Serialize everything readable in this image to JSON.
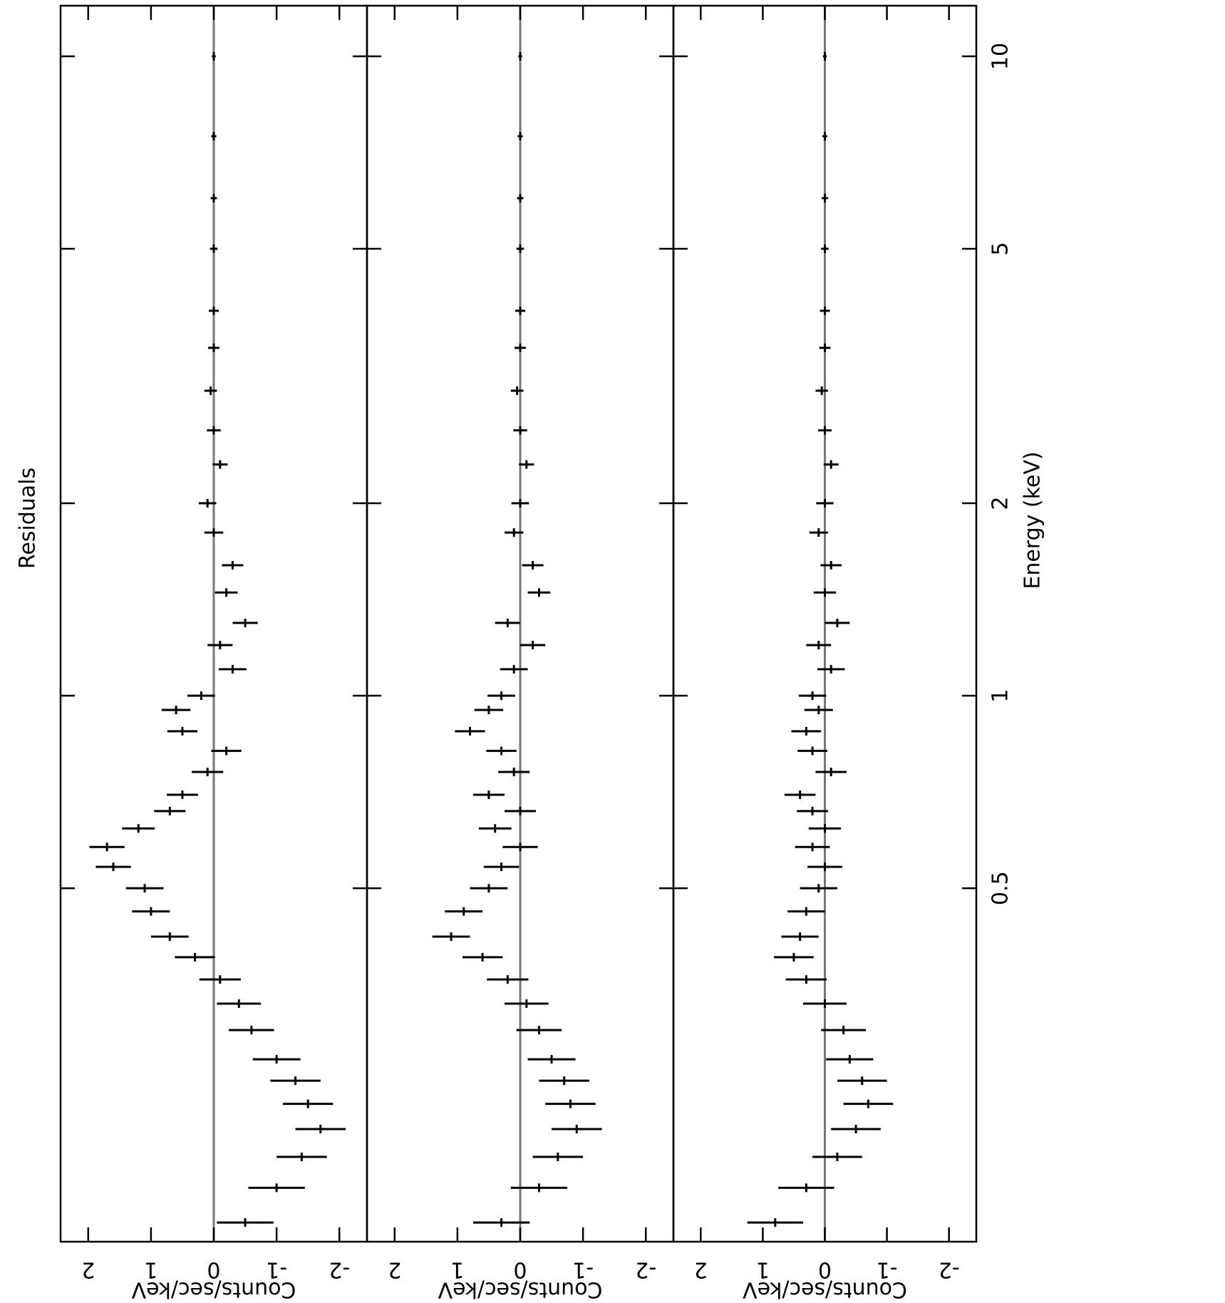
{
  "chart_data": [
    {
      "type": "errorbar",
      "title": "Residuals",
      "ylabel": "Counts/sec/keV",
      "xlog": true,
      "xlim": [
        0.14,
        12
      ],
      "xticks": [
        0.5,
        1,
        2,
        5,
        10
      ],
      "ylim": [
        -2.44,
        2.44
      ],
      "yticks": [
        -2,
        -1,
        0,
        1,
        2
      ],
      "series": [
        {
          "color": "#000000",
          "x": [
            0.15,
            0.17,
            0.19,
            0.21,
            0.23,
            0.25,
            0.27,
            0.3,
            0.33,
            0.36,
            0.39,
            0.42,
            0.46,
            0.5,
            0.54,
            0.58,
            0.62,
            0.66,
            0.7,
            0.76,
            0.82,
            0.88,
            0.95,
            1.0,
            1.1,
            1.2,
            1.3,
            1.45,
            1.6,
            1.8,
            2.0,
            2.3,
            2.6,
            3.0,
            3.5,
            4.0,
            5.0,
            6.0,
            7.5,
            10.0
          ],
          "values": [
            -0.5,
            -1.0,
            -1.4,
            -1.7,
            -1.5,
            -1.3,
            -1.0,
            -0.6,
            -0.4,
            -0.1,
            0.3,
            0.7,
            1.0,
            1.1,
            1.6,
            1.7,
            1.2,
            0.7,
            0.5,
            0.1,
            -0.2,
            0.5,
            0.6,
            0.2,
            -0.3,
            -0.1,
            -0.5,
            -0.2,
            -0.3,
            0,
            0.1,
            -0.1,
            0,
            0.05,
            0,
            0,
            0,
            0,
            0,
            0
          ],
          "errors": [
            0.45,
            0.45,
            0.4,
            0.4,
            0.4,
            0.4,
            0.38,
            0.36,
            0.35,
            0.33,
            0.32,
            0.3,
            0.3,
            0.3,
            0.28,
            0.28,
            0.26,
            0.25,
            0.25,
            0.25,
            0.24,
            0.24,
            0.23,
            0.22,
            0.22,
            0.2,
            0.2,
            0.18,
            0.17,
            0.15,
            0.14,
            0.12,
            0.11,
            0.1,
            0.09,
            0.08,
            0.06,
            0.05,
            0.04,
            0.03
          ]
        }
      ]
    },
    {
      "type": "errorbar",
      "ylabel": "Counts/sec/keV",
      "xlog": true,
      "xlim": [
        0.14,
        12
      ],
      "xticks": [
        0.5,
        1,
        2,
        5,
        10
      ],
      "ylim": [
        -2.44,
        2.44
      ],
      "yticks": [
        -2,
        -1,
        0,
        1,
        2
      ],
      "series": [
        {
          "color": "#000000",
          "x": [
            0.15,
            0.17,
            0.19,
            0.21,
            0.23,
            0.25,
            0.27,
            0.3,
            0.33,
            0.36,
            0.39,
            0.42,
            0.46,
            0.5,
            0.54,
            0.58,
            0.62,
            0.66,
            0.7,
            0.76,
            0.82,
            0.88,
            0.95,
            1.0,
            1.1,
            1.2,
            1.3,
            1.45,
            1.6,
            1.8,
            2.0,
            2.3,
            2.6,
            3.0,
            3.5,
            4.0,
            5.0,
            6.0,
            7.5,
            10.0
          ],
          "values": [
            0.3,
            -0.3,
            -0.6,
            -0.9,
            -0.8,
            -0.7,
            -0.5,
            -0.3,
            -0.1,
            0.2,
            0.6,
            1.1,
            0.9,
            0.5,
            0.3,
            0,
            0.4,
            0,
            0.5,
            0.1,
            0.3,
            0.8,
            0.5,
            0.3,
            0.1,
            -0.2,
            0.2,
            -0.3,
            -0.2,
            0.1,
            0,
            -0.1,
            0,
            0.05,
            0,
            0,
            0,
            0,
            0,
            0
          ],
          "errors": [
            0.45,
            0.45,
            0.4,
            0.4,
            0.4,
            0.4,
            0.38,
            0.36,
            0.35,
            0.33,
            0.32,
            0.3,
            0.3,
            0.3,
            0.28,
            0.28,
            0.26,
            0.25,
            0.25,
            0.25,
            0.24,
            0.24,
            0.23,
            0.22,
            0.22,
            0.2,
            0.2,
            0.18,
            0.17,
            0.15,
            0.14,
            0.12,
            0.11,
            0.1,
            0.09,
            0.08,
            0.06,
            0.05,
            0.04,
            0.03
          ]
        }
      ]
    },
    {
      "type": "errorbar",
      "ylabel": "Counts/sec/keV",
      "xlabel": "Energy (keV)",
      "xlog": true,
      "xlim": [
        0.14,
        12
      ],
      "xticks": [
        0.5,
        1,
        2,
        5,
        10
      ],
      "ylim": [
        -2.44,
        2.44
      ],
      "yticks": [
        -2,
        -1,
        0,
        1,
        2
      ],
      "series": [
        {
          "color": "#000000",
          "x": [
            0.15,
            0.17,
            0.19,
            0.21,
            0.23,
            0.25,
            0.27,
            0.3,
            0.33,
            0.36,
            0.39,
            0.42,
            0.46,
            0.5,
            0.54,
            0.58,
            0.62,
            0.66,
            0.7,
            0.76,
            0.82,
            0.88,
            0.95,
            1.0,
            1.1,
            1.2,
            1.3,
            1.45,
            1.6,
            1.8,
            2.0,
            2.3,
            2.6,
            3.0,
            3.5,
            4.0,
            5.0,
            6.0,
            7.5,
            10.0
          ],
          "values": [
            0.8,
            0.3,
            -0.2,
            -0.5,
            -0.7,
            -0.6,
            -0.4,
            -0.3,
            0,
            0.3,
            0.5,
            0.4,
            0.3,
            0.1,
            0,
            0.2,
            0,
            0.2,
            0.4,
            -0.1,
            0.2,
            0.3,
            0.1,
            0.2,
            -0.1,
            0.1,
            -0.2,
            0,
            -0.1,
            0.1,
            0,
            -0.1,
            0,
            0.05,
            0,
            0,
            0,
            0,
            0,
            0
          ],
          "errors": [
            0.45,
            0.45,
            0.4,
            0.4,
            0.4,
            0.4,
            0.38,
            0.36,
            0.35,
            0.33,
            0.32,
            0.3,
            0.3,
            0.3,
            0.28,
            0.28,
            0.26,
            0.25,
            0.25,
            0.25,
            0.24,
            0.24,
            0.23,
            0.22,
            0.22,
            0.2,
            0.2,
            0.18,
            0.17,
            0.15,
            0.14,
            0.12,
            0.11,
            0.1,
            0.09,
            0.08,
            0.06,
            0.05,
            0.04,
            0.03
          ]
        }
      ]
    }
  ]
}
